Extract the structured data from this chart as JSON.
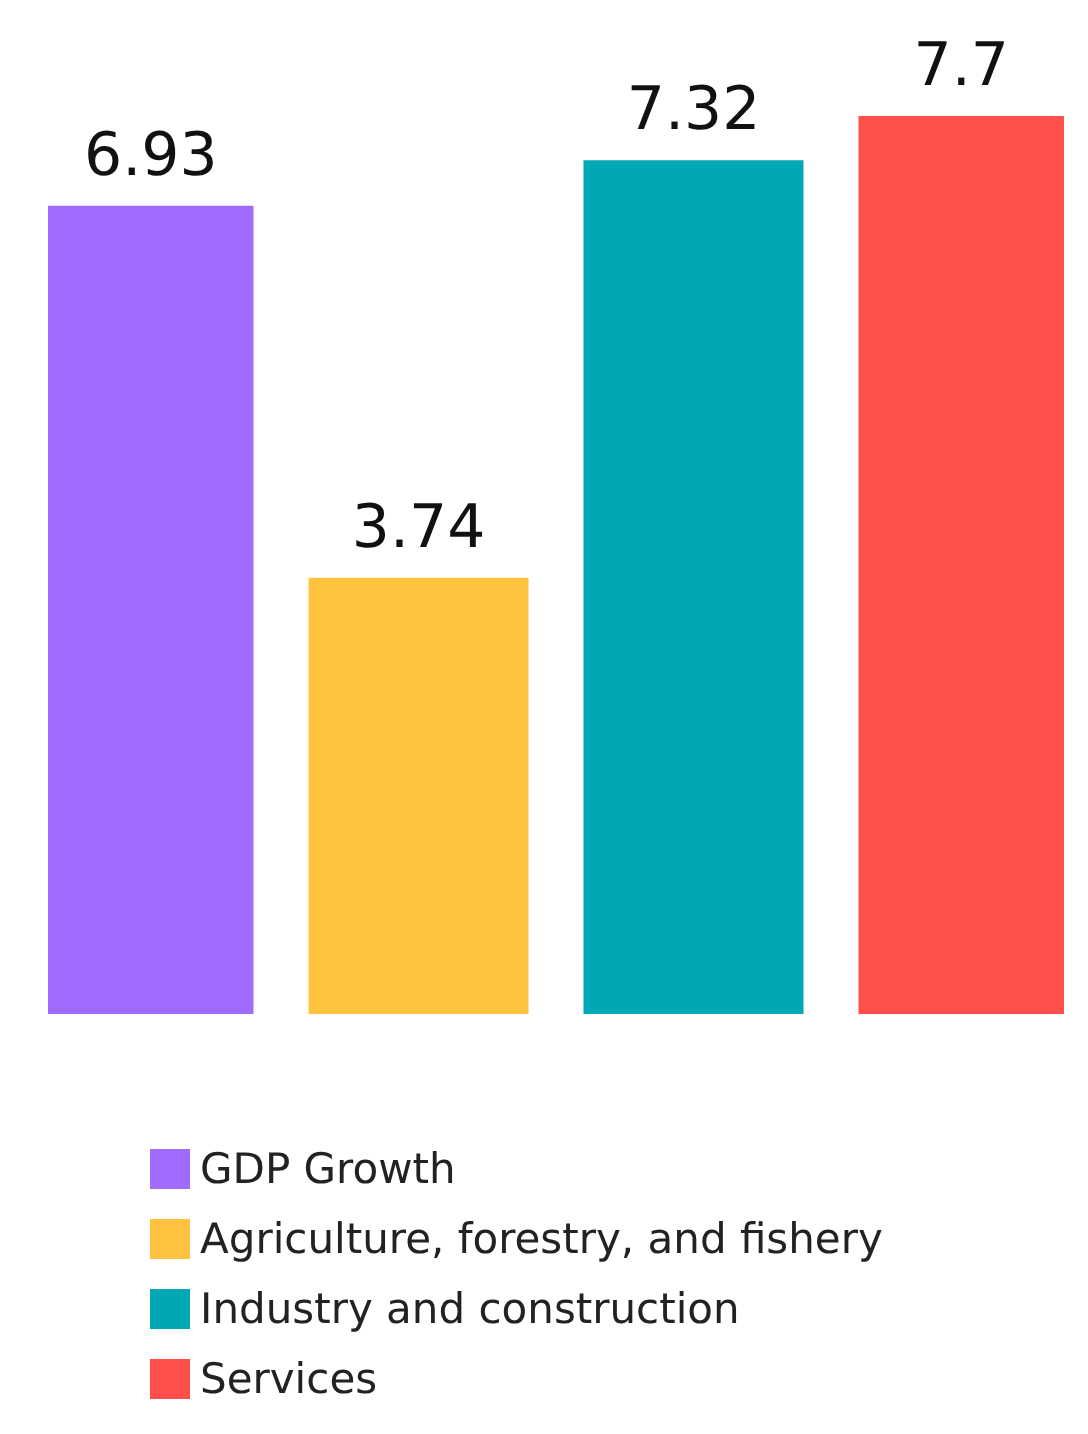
{
  "chart_data": {
    "type": "bar",
    "categories": [
      null
    ],
    "series": [
      {
        "name": "GDP Growth",
        "color": "#a06cff",
        "values": [
          6.93
        ]
      },
      {
        "name": "Agriculture, forestry, and fishery",
        "color": "#ffc23f",
        "values": [
          3.74
        ]
      },
      {
        "name": "Industry and construction",
        "color": "#00a7b5",
        "values": [
          7.32
        ]
      },
      {
        "name": "Services",
        "color": "#ff4f4a",
        "values": [
          7.7
        ]
      }
    ],
    "data_labels": true,
    "legend": "bottom",
    "grid": false
  }
}
